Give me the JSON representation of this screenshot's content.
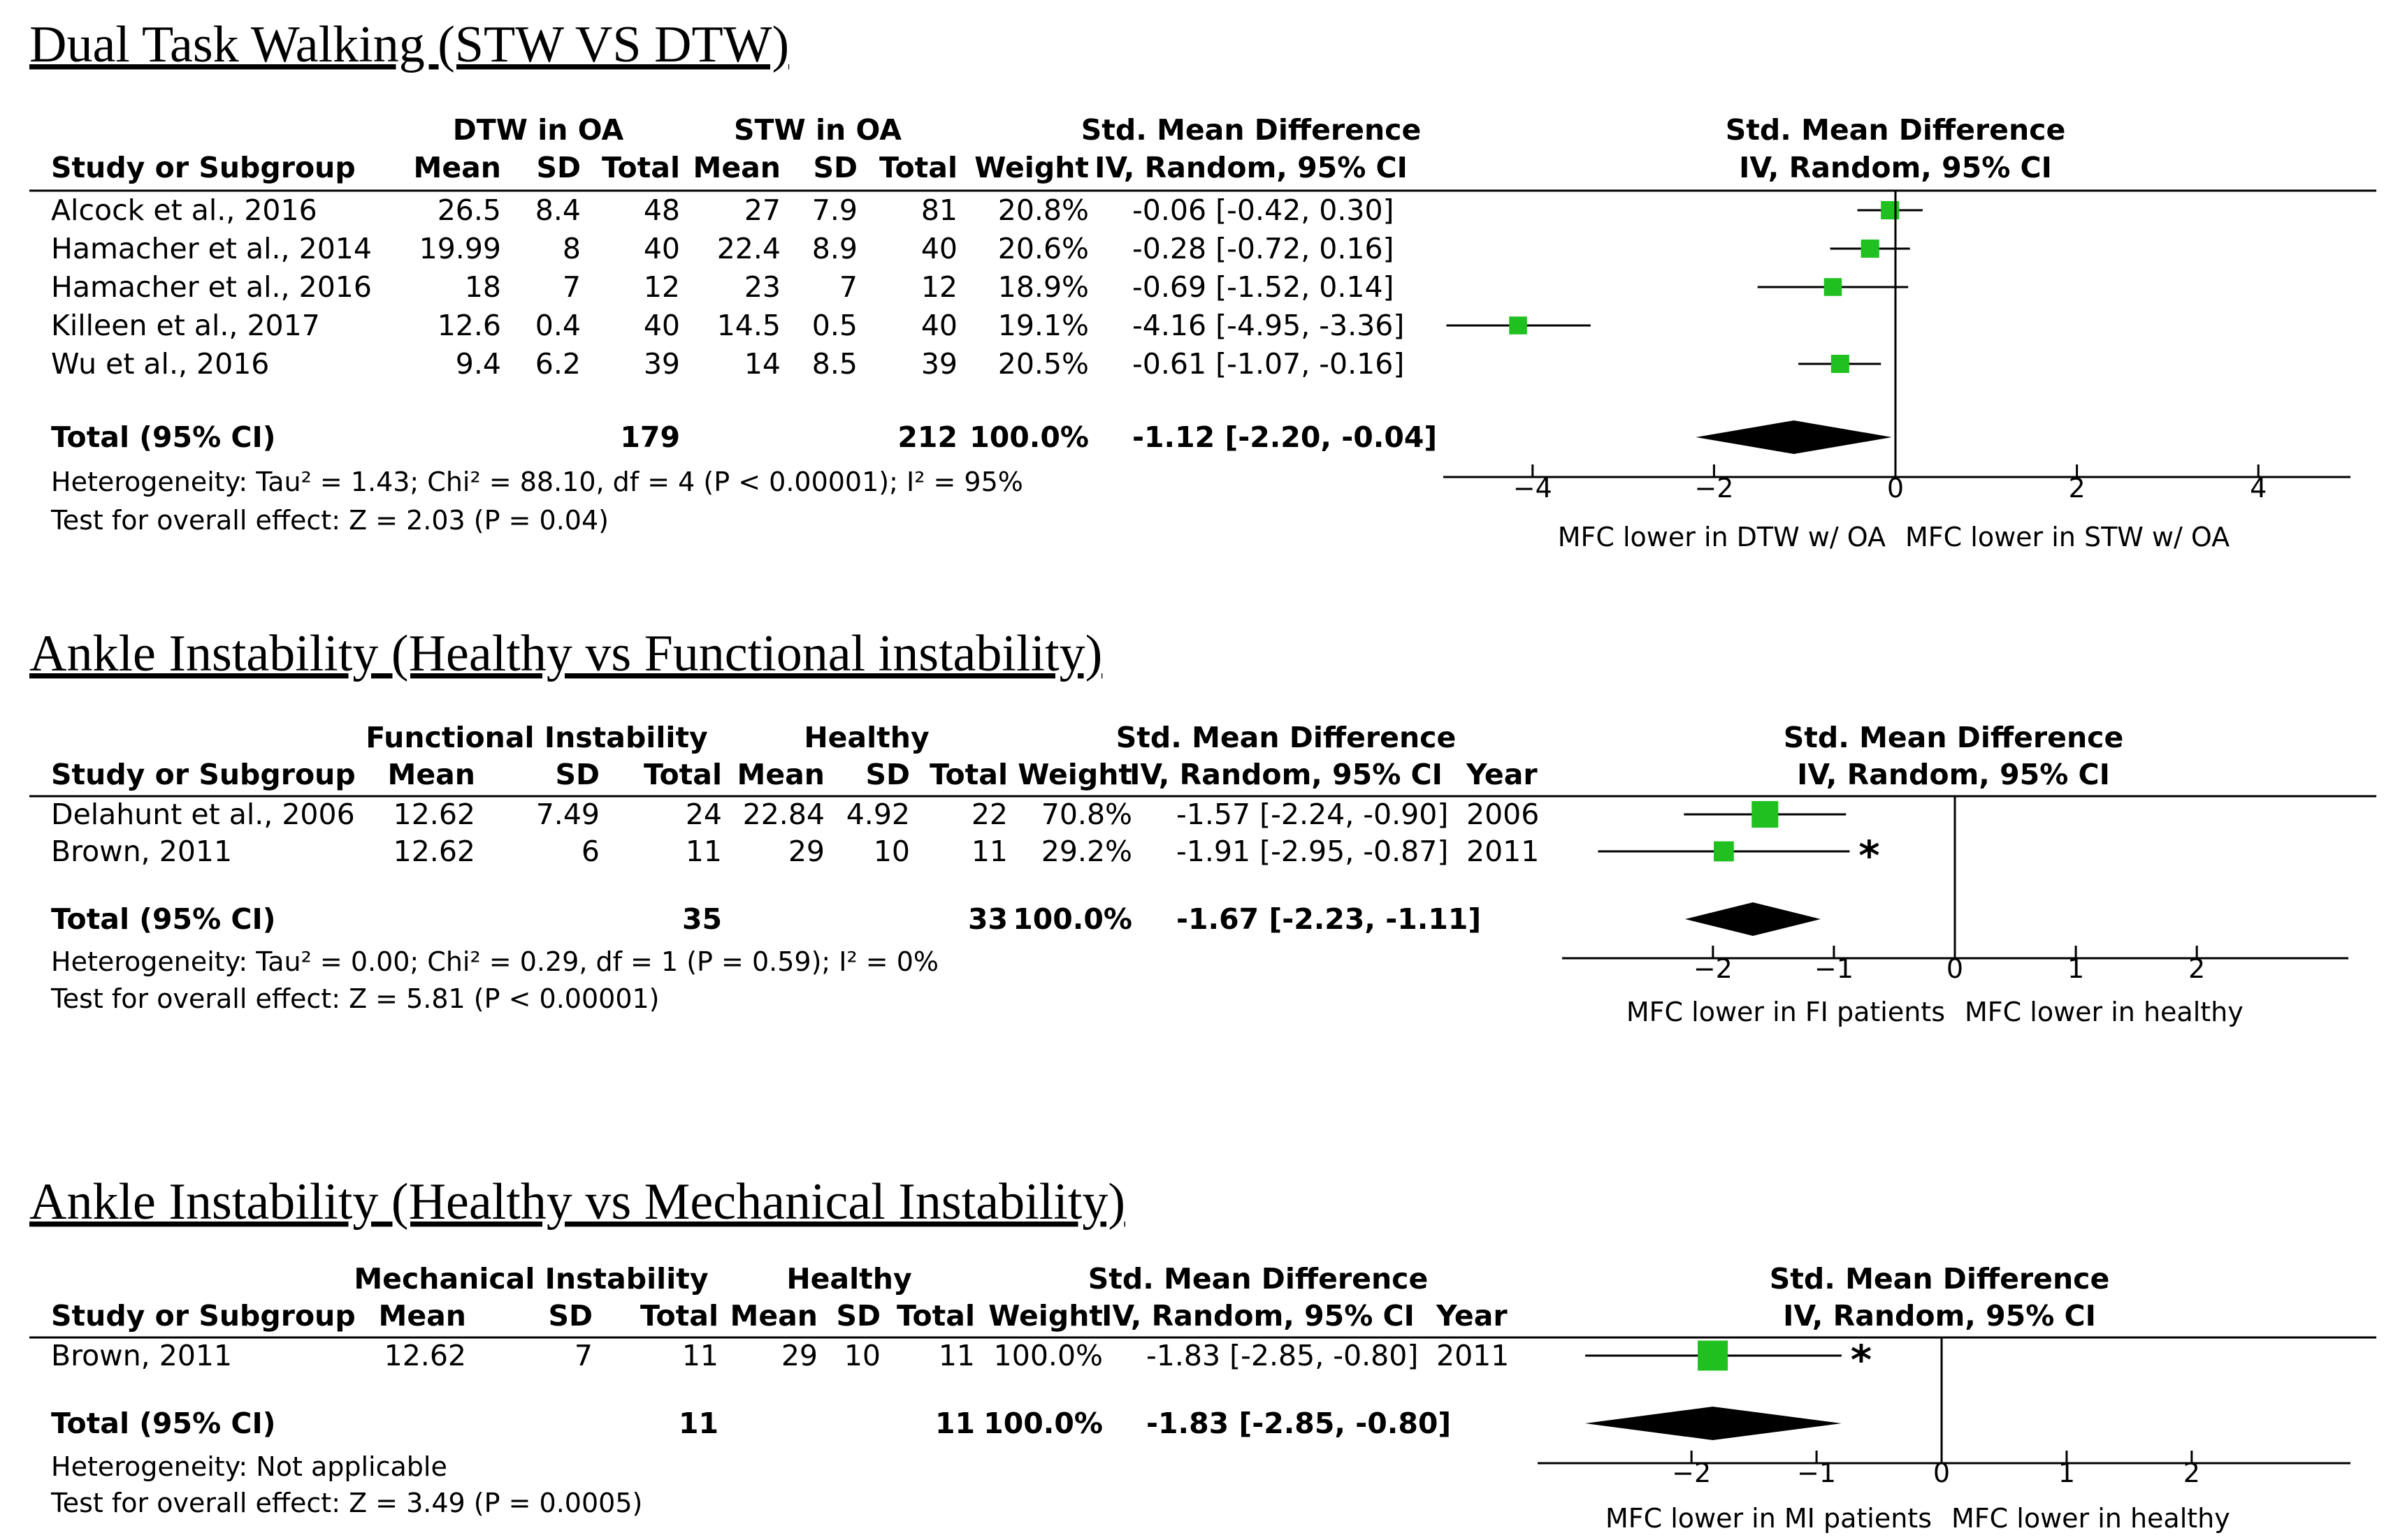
{
  "chart_data": [
    {
      "type": "forest",
      "title": "Dual Task Walking (STW VS DTW)",
      "group1_label": "DTW in OA",
      "group2_label": "STW in OA",
      "columns": {
        "study": "Study or Subgroup",
        "mean": "Mean",
        "sd": "SD",
        "total": "Total",
        "weight": "Weight",
        "effect_line1": "Std. Mean Difference",
        "effect_line2": "IV, Random, 95% CI",
        "year": ""
      },
      "studies": [
        {
          "name": "Alcock et al., 2016",
          "g1_mean": "26.5",
          "g1_sd": "8.4",
          "g1_total": "48",
          "g2_mean": "27",
          "g2_sd": "7.9",
          "g2_total": "81",
          "weight": "20.8%",
          "ci_text": "-0.06 [-0.42, 0.30]",
          "year": "",
          "est": -0.06,
          "lo": -0.42,
          "hi": 0.3,
          "w": 20.8,
          "marker": ""
        },
        {
          "name": "Hamacher et al., 2014",
          "g1_mean": "19.99",
          "g1_sd": "8",
          "g1_total": "40",
          "g2_mean": "22.4",
          "g2_sd": "8.9",
          "g2_total": "40",
          "weight": "20.6%",
          "ci_text": "-0.28 [-0.72, 0.16]",
          "year": "",
          "est": -0.28,
          "lo": -0.72,
          "hi": 0.16,
          "w": 20.6,
          "marker": ""
        },
        {
          "name": "Hamacher et al., 2016",
          "g1_mean": "18",
          "g1_sd": "7",
          "g1_total": "12",
          "g2_mean": "23",
          "g2_sd": "7",
          "g2_total": "12",
          "weight": "18.9%",
          "ci_text": "-0.69 [-1.52, 0.14]",
          "year": "",
          "est": -0.69,
          "lo": -1.52,
          "hi": 0.14,
          "w": 18.9,
          "marker": ""
        },
        {
          "name": "Killeen et al., 2017",
          "g1_mean": "12.6",
          "g1_sd": "0.4",
          "g1_total": "40",
          "g2_mean": "14.5",
          "g2_sd": "0.5",
          "g2_total": "40",
          "weight": "19.1%",
          "ci_text": "-4.16 [-4.95, -3.36]",
          "year": "",
          "est": -4.16,
          "lo": -4.95,
          "hi": -3.36,
          "w": 19.1,
          "marker": ""
        },
        {
          "name": "Wu et al., 2016",
          "g1_mean": "9.4",
          "g1_sd": "6.2",
          "g1_total": "39",
          "g2_mean": "14",
          "g2_sd": "8.5",
          "g2_total": "39",
          "weight": "20.5%",
          "ci_text": "-0.61 [-1.07, -0.16]",
          "year": "",
          "est": -0.61,
          "lo": -1.07,
          "hi": -0.16,
          "w": 20.5,
          "marker": ""
        }
      ],
      "total": {
        "label": "Total (95% CI)",
        "g1_total": "179",
        "g2_total": "212",
        "weight": "100.0%",
        "ci_text": "-1.12 [-2.20, -0.04]",
        "est": -1.12,
        "lo": -2.2,
        "hi": -0.04
      },
      "heterogeneity": "Heterogeneity: Tau² = 1.43; Chi² = 88.10, df = 4 (P < 0.00001); I² = 95%",
      "overall_effect": "Test for overall effect: Z = 2.03 (P = 0.04)",
      "axis": {
        "min": -5,
        "max": 5,
        "ticks": [
          -4,
          -2,
          0,
          2,
          4
        ],
        "tick_labels": [
          "-4",
          "-2",
          "0",
          "2",
          "4"
        ]
      },
      "favours_left": "MFC lower in DTW w/ OA",
      "favours_right": "MFC lower in STW w/ OA",
      "colors": {
        "marker": "#1fc01f",
        "star": "#e8222a",
        "line": "#000000"
      }
    },
    {
      "type": "forest",
      "title": "Ankle Instability (Healthy vs Functional instability)",
      "group1_label": "Functional Instability",
      "group2_label": "Healthy",
      "columns": {
        "study": "Study or Subgroup",
        "mean": "Mean",
        "sd": "SD",
        "total": "Total",
        "weight": "Weight",
        "effect_line1": "Std. Mean Difference",
        "effect_line2": "IV, Random, 95% CI",
        "year": "Year"
      },
      "studies": [
        {
          "name": "Delahunt et al., 2006",
          "g1_mean": "12.62",
          "g1_sd": "7.49",
          "g1_total": "24",
          "g2_mean": "22.84",
          "g2_sd": "4.92",
          "g2_total": "22",
          "weight": "70.8%",
          "ci_text": "-1.57 [-2.24, -0.90]",
          "year": "2006",
          "est": -1.57,
          "lo": -2.24,
          "hi": -0.9,
          "w": 70.8,
          "marker": ""
        },
        {
          "name": "Brown, 2011",
          "g1_mean": "12.62",
          "g1_sd": "6",
          "g1_total": "11",
          "g2_mean": "29",
          "g2_sd": "10",
          "g2_total": "11",
          "weight": "29.2%",
          "ci_text": "-1.91 [-2.95, -0.87]",
          "year": "2011",
          "est": -1.91,
          "lo": -2.95,
          "hi": -0.87,
          "w": 29.2,
          "marker": "*"
        }
      ],
      "total": {
        "label": "Total (95% CI)",
        "g1_total": "35",
        "g2_total": "33",
        "weight": "100.0%",
        "ci_text": "-1.67 [-2.23, -1.11]",
        "est": -1.67,
        "lo": -2.23,
        "hi": -1.11
      },
      "heterogeneity": "Heterogeneity: Tau² = 0.00; Chi² = 0.29, df = 1 (P = 0.59); I² = 0%",
      "overall_effect": "Test for overall effect: Z = 5.81 (P < 0.00001)",
      "axis": {
        "min": -3.25,
        "max": 3.25,
        "ticks": [
          -2,
          -1,
          0,
          1,
          2
        ],
        "tick_labels": [
          "-2",
          "-1",
          "0",
          "1",
          "2"
        ]
      },
      "favours_left": "MFC lower in FI patients",
      "favours_right": "MFC lower in healthy",
      "colors": {
        "marker": "#1fc01f",
        "star": "#e8222a",
        "line": "#000000"
      }
    },
    {
      "type": "forest",
      "title": "Ankle Instability (Healthy vs Mechanical Instability)",
      "group1_label": "Mechanical Instability",
      "group2_label": "Healthy",
      "columns": {
        "study": "Study or Subgroup",
        "mean": "Mean",
        "sd": "SD",
        "total": "Total",
        "weight": "Weight",
        "effect_line1": "Std. Mean Difference",
        "effect_line2": "IV, Random, 95% CI",
        "year": "Year"
      },
      "studies": [
        {
          "name": "Brown, 2011",
          "g1_mean": "12.62",
          "g1_sd": "7",
          "g1_total": "11",
          "g2_mean": "29",
          "g2_sd": "10",
          "g2_total": "11",
          "weight": "100.0%",
          "ci_text": "-1.83 [-2.85, -0.80]",
          "year": "2011",
          "est": -1.83,
          "lo": -2.85,
          "hi": -0.8,
          "w": 100.0,
          "marker": "*"
        }
      ],
      "total": {
        "label": "Total (95% CI)",
        "g1_total": "11",
        "g2_total": "11",
        "weight": "100.0%",
        "ci_text": "-1.83 [-2.85, -0.80]",
        "est": -1.83,
        "lo": -2.85,
        "hi": -0.8
      },
      "heterogeneity": "Heterogeneity: Not applicable",
      "overall_effect": "Test for overall effect: Z = 3.49 (P = 0.0005)",
      "axis": {
        "min": -3.25,
        "max": 3.25,
        "ticks": [
          -2,
          -1,
          0,
          1,
          2
        ],
        "tick_labels": [
          "-2",
          "-1",
          "0",
          "1",
          "2"
        ]
      },
      "favours_left": "MFC lower in MI patients",
      "favours_right": "MFC lower in healthy",
      "colors": {
        "marker": "#1fc01f",
        "star": "#e8222a",
        "line": "#000000"
      }
    }
  ]
}
